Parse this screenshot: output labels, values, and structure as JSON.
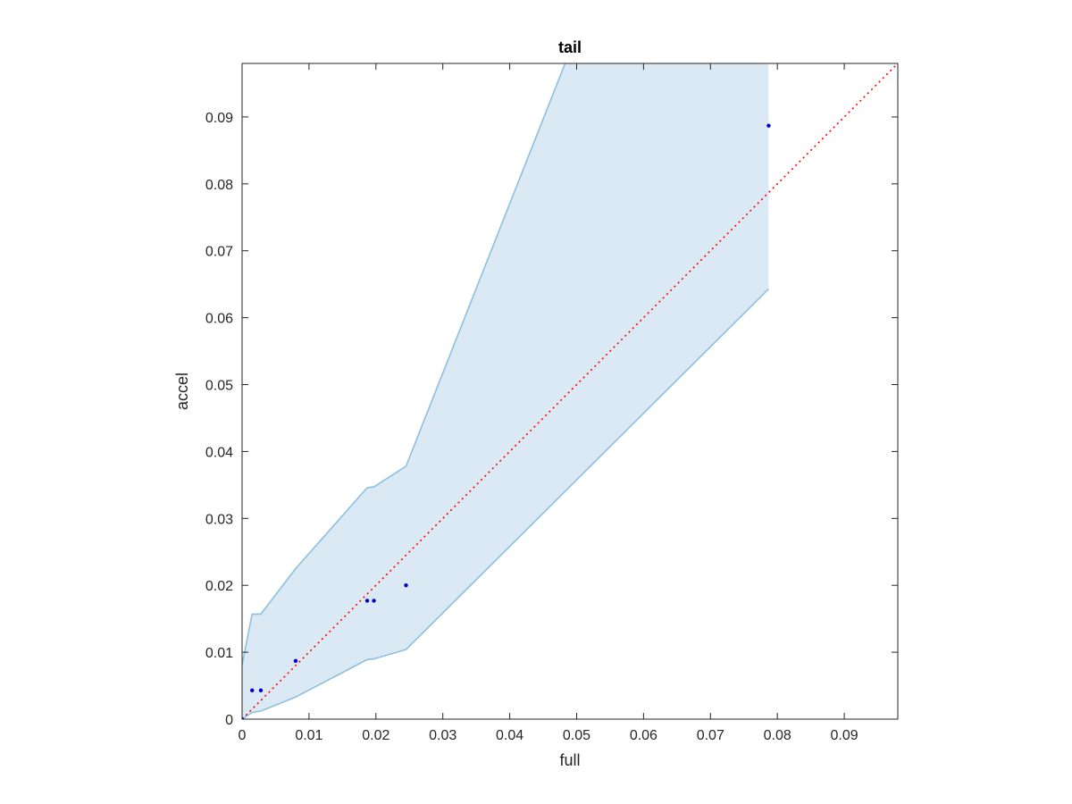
{
  "chart_data": {
    "type": "scatter",
    "title": "tail",
    "xlabel": "full",
    "ylabel": "accel",
    "xlim": [
      0,
      0.098
    ],
    "ylim": [
      0,
      0.098
    ],
    "xticks": [
      0,
      0.01,
      0.02,
      0.03,
      0.04,
      0.05,
      0.06,
      0.07,
      0.08,
      0.09
    ],
    "yticks": [
      0,
      0.01,
      0.02,
      0.03,
      0.04,
      0.05,
      0.06,
      0.07,
      0.08,
      0.09
    ],
    "xtick_labels": [
      "0",
      "0.01",
      "0.02",
      "0.03",
      "0.04",
      "0.05",
      "0.06",
      "0.07",
      "0.08",
      "0.09"
    ],
    "ytick_labels": [
      "0",
      "0.01",
      "0.02",
      "0.03",
      "0.04",
      "0.05",
      "0.06",
      "0.07",
      "0.08",
      "0.09"
    ],
    "grid": false,
    "points": {
      "x": [
        0,
        0.0015,
        0.0028,
        0.008,
        0.0187,
        0.0197,
        0.0245,
        0.0787
      ],
      "y": [
        0,
        0.0043,
        0.0043,
        0.0087,
        0.0177,
        0.0177,
        0.02,
        0.0887
      ],
      "color": "#0000cc"
    },
    "band": {
      "x": [
        0,
        0.0015,
        0.0028,
        0.008,
        0.0187,
        0.0197,
        0.0245,
        0.0787
      ],
      "upper": [
        0.0081,
        0.0157,
        0.0157,
        0.0225,
        0.0346,
        0.0347,
        0.0378,
        0.175
      ],
      "lower": [
        0,
        0.001,
        0.0012,
        0.0033,
        0.0089,
        0.009,
        0.0104,
        0.0643
      ],
      "fill_color": "#dae9f4",
      "edge_color": "#8cc0e0"
    },
    "reference_line": {
      "x": [
        0,
        0.098
      ],
      "y": [
        0,
        0.098
      ],
      "style": "dotted",
      "color": "#ff0000"
    },
    "axis_color": "#262626"
  }
}
